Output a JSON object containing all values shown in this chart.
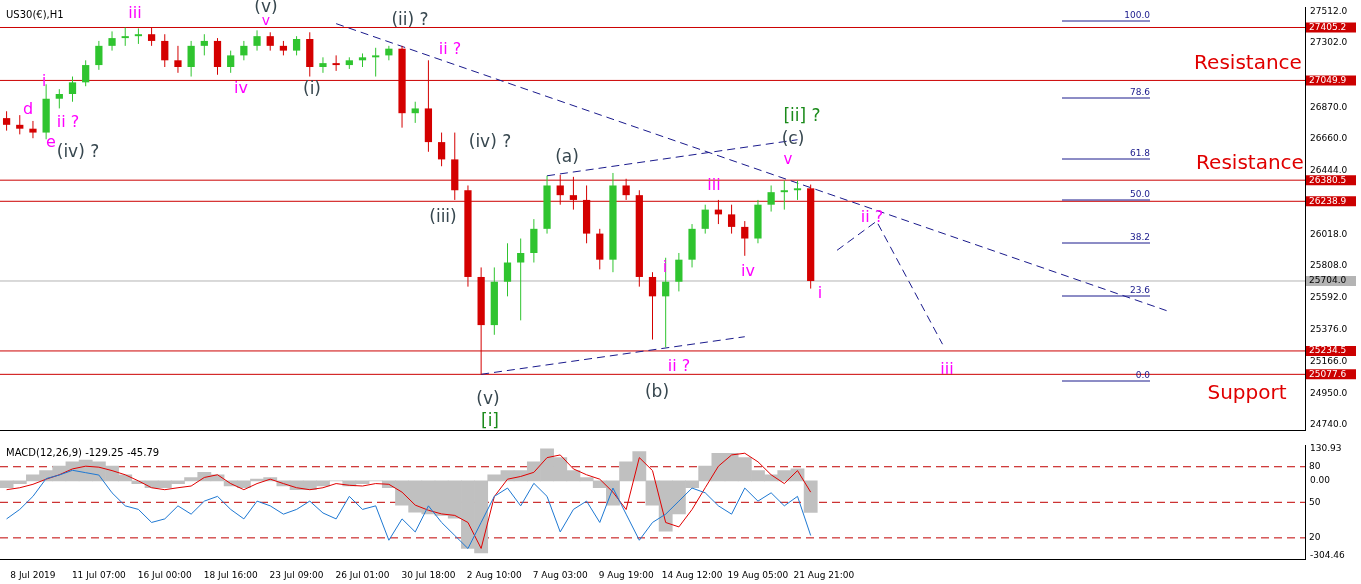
{
  "chart_data": [
    {
      "type": "candlestick",
      "title": "US30(€),H1",
      "tick_labels": "y",
      "categories": [
        null,
        null,
        null,
        null,
        null,
        null,
        null,
        null,
        null,
        null,
        null,
        null,
        null,
        null,
        null,
        null,
        null,
        null,
        null,
        null,
        null,
        null,
        null,
        null,
        null,
        null,
        null,
        null,
        null,
        null,
        null,
        null,
        null,
        null,
        null,
        null,
        null,
        null,
        null,
        null,
        null,
        null,
        null,
        null,
        null,
        null,
        null,
        null,
        null,
        null,
        null,
        null,
        null,
        null,
        null,
        null,
        null,
        null,
        null,
        null,
        null,
        null,
        null,
        null,
        null,
        null,
        null,
        null,
        null,
        null,
        null,
        null,
        null,
        null,
        null,
        null,
        null,
        null,
        null,
        null,
        null,
        null,
        null,
        null,
        null,
        null,
        null,
        null,
        null,
        null,
        null,
        null,
        null,
        null,
        null,
        null,
        null,
        null,
        null
      ],
      "ohlc": [
        [
          26797,
          26843,
          26713,
          26752
        ],
        [
          26752,
          26817,
          26688,
          26726
        ],
        [
          26726,
          26778,
          26662,
          26700
        ],
        [
          26700,
          27024,
          26655,
          26927
        ],
        [
          26927,
          26991,
          26862,
          26959
        ],
        [
          26959,
          27076,
          26907,
          27037
        ],
        [
          27037,
          27185,
          27011,
          27153
        ],
        [
          27153,
          27315,
          27121,
          27282
        ],
        [
          27282,
          27379,
          27250,
          27334
        ],
        [
          27334,
          27405,
          27282,
          27347
        ],
        [
          27347,
          27399,
          27295,
          27360
        ],
        [
          27360,
          27405,
          27282,
          27315
        ],
        [
          27315,
          27360,
          27140,
          27185
        ],
        [
          27185,
          27282,
          27101,
          27140
        ],
        [
          27140,
          27315,
          27076,
          27282
        ],
        [
          27282,
          27360,
          27218,
          27315
        ],
        [
          27315,
          27334,
          27088,
          27140
        ],
        [
          27140,
          27250,
          27101,
          27218
        ],
        [
          27218,
          27315,
          27185,
          27282
        ],
        [
          27282,
          27386,
          27250,
          27347
        ],
        [
          27347,
          27373,
          27250,
          27282
        ],
        [
          27282,
          27315,
          27218,
          27250
        ],
        [
          27250,
          27347,
          27218,
          27328
        ],
        [
          27328,
          27373,
          27076,
          27140
        ],
        [
          27140,
          27205,
          27101,
          27166
        ],
        [
          27166,
          27218,
          27114,
          27153
        ],
        [
          27153,
          27205,
          27127,
          27185
        ],
        [
          27185,
          27231,
          27140,
          27205
        ],
        [
          27205,
          27269,
          27076,
          27218
        ],
        [
          27218,
          27282,
          27185,
          27263
        ],
        [
          27263,
          27282,
          26733,
          26830
        ],
        [
          26830,
          26907,
          26765,
          26862
        ],
        [
          26862,
          27185,
          26571,
          26636
        ],
        [
          26636,
          26700,
          26474,
          26520
        ],
        [
          26520,
          26700,
          26248,
          26313
        ],
        [
          26313,
          26345,
          25666,
          25731
        ],
        [
          25731,
          25795,
          25078,
          25408
        ],
        [
          25408,
          25795,
          25343,
          25699
        ],
        [
          25699,
          25957,
          25601,
          25828
        ],
        [
          25828,
          25989,
          25440,
          25892
        ],
        [
          25892,
          26119,
          25828,
          26054
        ],
        [
          26054,
          26410,
          26022,
          26345
        ],
        [
          26345,
          26416,
          26216,
          26280
        ],
        [
          26280,
          26403,
          26183,
          26248
        ],
        [
          26248,
          26345,
          25957,
          26022
        ],
        [
          26022,
          26054,
          25782,
          25847
        ],
        [
          25847,
          26429,
          25763,
          26345
        ],
        [
          26345,
          26390,
          26248,
          26280
        ],
        [
          26280,
          26313,
          25666,
          25731
        ],
        [
          25731,
          25763,
          25311,
          25601
        ],
        [
          25601,
          25860,
          25259,
          25699
        ],
        [
          25699,
          25892,
          25634,
          25847
        ],
        [
          25847,
          26086,
          25795,
          26054
        ],
        [
          26054,
          26216,
          26022,
          26183
        ],
        [
          26183,
          26248,
          26086,
          26151
        ],
        [
          26151,
          26216,
          26022,
          26067
        ],
        [
          26067,
          26106,
          25873,
          25989
        ],
        [
          25989,
          26248,
          25957,
          26216
        ],
        [
          26216,
          26345,
          26170,
          26300
        ],
        [
          26300,
          26377,
          26183,
          26313
        ],
        [
          26313,
          26377,
          26248,
          26326
        ],
        [
          26326,
          26351,
          25653,
          25704
        ],
        null,
        null,
        null,
        null,
        null,
        null,
        null,
        null,
        null,
        null,
        null,
        null,
        null,
        null,
        null,
        null,
        null,
        null,
        null,
        null,
        null,
        null,
        null,
        null,
        null,
        null,
        null,
        null,
        null,
        null,
        null,
        null,
        null,
        null,
        null,
        null,
        null
      ],
      "colors": [
        "#d40000",
        "#d40000",
        "#d40000",
        "#2fc42f",
        "#2fc42f",
        "#2fc42f",
        "#2fc42f",
        "#2fc42f",
        "#2fc42f",
        "#2fc42f",
        "#2fc42f",
        "#d40000",
        "#d40000",
        "#d40000",
        "#2fc42f",
        "#2fc42f",
        "#d40000",
        "#2fc42f",
        "#2fc42f",
        "#2fc42f",
        "#d40000",
        "#d40000",
        "#2fc42f",
        "#d40000",
        "#2fc42f",
        "#d40000",
        "#2fc42f",
        "#2fc42f",
        "#2fc42f",
        "#2fc42f",
        "#d40000",
        "#2fc42f",
        "#d40000",
        "#d40000",
        "#d40000",
        "#d40000",
        "#d40000",
        "#2fc42f",
        "#2fc42f",
        "#2fc42f",
        "#2fc42f",
        "#2fc42f",
        "#d40000",
        "#d40000",
        "#d40000",
        "#d40000",
        "#2fc42f",
        "#d40000",
        "#d40000",
        "#d40000",
        "#2fc42f",
        "#2fc42f",
        "#2fc42f",
        "#2fc42f",
        "#d40000",
        "#d40000",
        "#d40000",
        "#2fc42f",
        "#2fc42f",
        "#2fc42f",
        "#2fc42f",
        "#d40000",
        null,
        null,
        null,
        null,
        null,
        null,
        null,
        null,
        null,
        null,
        null,
        null,
        null,
        null,
        null,
        null,
        null,
        null,
        null,
        null,
        null,
        null,
        null,
        null,
        null,
        null,
        null,
        null,
        null,
        null,
        null,
        null,
        null,
        null,
        null,
        null,
        null
      ],
      "series": [
        {
          "type": "line",
          "color": "#1a1a8c",
          "line_style": "dashed",
          "values": [
            null,
            null,
            null,
            null,
            null,
            null,
            null,
            null,
            null,
            null,
            null,
            null,
            null,
            null,
            null,
            null,
            null,
            null,
            null,
            null,
            null,
            null,
            null,
            null,
            null,
            27431,
            null,
            null,
            null,
            null,
            null,
            null,
            null,
            null,
            null,
            null,
            null,
            null,
            null,
            null,
            null,
            null,
            null,
            null,
            null,
            null,
            null,
            null,
            null,
            null,
            null,
            null,
            null,
            null,
            null,
            null,
            null,
            null,
            null,
            null,
            null,
            null,
            null,
            null,
            null,
            null,
            null,
            null,
            null,
            null,
            null,
            null,
            null,
            null,
            null,
            null,
            null,
            null,
            null,
            null,
            null,
            null,
            null,
            null,
            null,
            null,
            null,
            null,
            25505,
            null,
            null,
            null,
            null,
            null,
            null,
            null,
            null,
            null,
            null
          ]
        },
        {
          "type": "line",
          "color": "#1a1a8c",
          "line_style": "dashed",
          "values": [
            null,
            null,
            null,
            null,
            null,
            null,
            null,
            null,
            null,
            null,
            null,
            null,
            null,
            null,
            null,
            null,
            null,
            null,
            null,
            null,
            null,
            null,
            null,
            null,
            null,
            null,
            null,
            null,
            null,
            null,
            null,
            null,
            null,
            null,
            null,
            null,
            null,
            null,
            null,
            null,
            null,
            26410,
            null,
            null,
            null,
            null,
            null,
            null,
            null,
            null,
            null,
            null,
            null,
            null,
            null,
            null,
            null,
            null,
            null,
            null,
            26652,
            null,
            null,
            null,
            null,
            null,
            null,
            null,
            null,
            null,
            null,
            null,
            null,
            null,
            null,
            null,
            null,
            null,
            null,
            null,
            null,
            null,
            null,
            null,
            null,
            null,
            null,
            null,
            null,
            null,
            null,
            null,
            null,
            null,
            null,
            null,
            null,
            null,
            null
          ]
        },
        {
          "type": "line",
          "color": "#1a1a8c",
          "line_style": "dashed",
          "values": [
            null,
            null,
            null,
            null,
            null,
            null,
            null,
            null,
            null,
            null,
            null,
            null,
            null,
            null,
            null,
            null,
            null,
            null,
            null,
            null,
            null,
            null,
            null,
            null,
            null,
            null,
            null,
            null,
            null,
            null,
            null,
            null,
            null,
            null,
            null,
            null,
            25078,
            null,
            null,
            null,
            null,
            null,
            null,
            null,
            null,
            null,
            null,
            null,
            null,
            null,
            null,
            null,
            null,
            null,
            null,
            null,
            25330,
            null,
            null,
            null,
            null,
            null,
            null,
            null,
            null,
            null,
            null,
            null,
            null,
            null,
            null,
            null,
            null,
            null,
            null,
            null,
            null,
            null,
            null,
            null,
            null,
            null,
            null,
            null,
            null,
            null,
            null,
            null,
            null,
            null,
            null,
            null,
            null,
            null,
            null,
            null,
            null,
            null,
            null
          ]
        },
        {
          "type": "line",
          "color": "#1a1a8c",
          "line_style": "dashed",
          "values": [
            null,
            null,
            null,
            null,
            null,
            null,
            null,
            null,
            null,
            null,
            null,
            null,
            null,
            null,
            null,
            null,
            null,
            null,
            null,
            null,
            null,
            null,
            null,
            null,
            null,
            null,
            null,
            null,
            null,
            null,
            null,
            null,
            null,
            null,
            null,
            null,
            null,
            null,
            null,
            null,
            null,
            null,
            null,
            null,
            null,
            null,
            null,
            null,
            null,
            null,
            null,
            null,
            null,
            null,
            null,
            null,
            null,
            null,
            null,
            null,
            null,
            null,
            null,
            25910,
            null,
            null,
            26105,
            null,
            null,
            null,
            null,
            25280,
            null,
            null,
            null,
            null,
            null,
            null,
            null,
            null,
            null,
            null,
            null,
            null,
            null,
            null,
            null,
            null,
            null,
            null,
            null,
            null,
            null,
            null,
            null,
            null,
            null,
            null,
            null
          ]
        }
      ],
      "ylim": [
        24700,
        27540
      ],
      "yticks": [
        {
          "value": 27512,
          "label": "27512.0"
        },
        {
          "value": 27302,
          "label": "27302.0"
        },
        {
          "value": 26870,
          "label": "26870.0"
        },
        {
          "value": 26660,
          "label": "26660.0"
        },
        {
          "value": 26444,
          "label": "26444.0"
        },
        {
          "value": 26018,
          "label": "26018.0"
        },
        {
          "value": 25808,
          "label": "25808.0"
        },
        {
          "value": 25592,
          "label": "25592.0"
        },
        {
          "value": 25376,
          "label": "25376.0"
        },
        {
          "value": 25166,
          "label": "25166.0"
        },
        {
          "value": 24950,
          "label": "24950.0"
        },
        {
          "value": 24740,
          "label": "24740.0"
        }
      ],
      "ref_lines": [
        {
          "axis": "y",
          "value": 27405.2,
          "label": "27405.2",
          "color": "#cc0000"
        },
        {
          "axis": "y",
          "value": 27049.9,
          "label": "27049.9",
          "color": "#cc0000"
        },
        {
          "axis": "y",
          "value": 26380.5,
          "label": "26380.5",
          "color": "#cc0000"
        },
        {
          "axis": "y",
          "value": 26238.9,
          "label": "26238.9",
          "color": "#cc0000"
        },
        {
          "axis": "y",
          "value": 25704.0,
          "label": "25704.0",
          "color": "#b4b4b4"
        },
        {
          "axis": "y",
          "value": 25234.5,
          "label": "25234.5",
          "color": "#cc0000"
        },
        {
          "axis": "y",
          "value": 25077.6,
          "label": "25077.6",
          "color": "#cc0000"
        }
      ],
      "annotations": [
        "iii",
        "(v)",
        "v",
        "(ii) ?",
        "ii ?",
        "i",
        "d",
        "ii ?",
        "e",
        "(iv) ?",
        "iv",
        "(i)",
        "(iv) ?",
        "(iii)",
        "(a)",
        "(v)",
        "[i]",
        "i",
        "ii ?",
        "(b)",
        "iii",
        "iv",
        "[ii] ?",
        "(c)",
        "v",
        "i",
        "ii ?",
        "iii",
        "Resistance",
        "Resistance",
        "Support",
        "100.0",
        "78.6",
        "61.8",
        "50.0",
        "38.2",
        "23.6",
        "0.0"
      ]
    },
    {
      "type": "line",
      "title": "MACD(12,26,9) -129.25 -45.79",
      "categories": [
        null,
        null,
        "8 Jul 2019",
        null,
        null,
        null,
        null,
        "11 Jul 07:00",
        null,
        null,
        null,
        null,
        "16 Jul 00:00",
        null,
        null,
        null,
        null,
        "18 Jul 16:00",
        null,
        null,
        null,
        null,
        "23 Jul 09:00",
        null,
        null,
        null,
        null,
        "26 Jul 01:00",
        null,
        null,
        null,
        null,
        "30 Jul 18:00",
        null,
        null,
        null,
        null,
        "2 Aug 10:00",
        null,
        null,
        null,
        null,
        "7 Aug 03:00",
        null,
        null,
        null,
        null,
        "9 Aug 19:00",
        null,
        null,
        null,
        null,
        "14 Aug 12:00",
        null,
        null,
        null,
        null,
        "19 Aug 05:00",
        null,
        null,
        null,
        null,
        "21 Aug 21:00",
        null,
        null,
        null,
        null,
        null,
        null,
        null,
        null,
        null,
        null,
        null,
        null,
        null,
        null,
        null,
        null,
        null,
        null,
        null,
        null,
        null,
        null,
        null,
        null,
        null,
        null,
        null,
        null,
        null,
        null,
        null,
        null,
        null,
        null,
        null,
        null
      ],
      "series": [
        {
          "type": "bar",
          "color": "#c0c0c0",
          "values": [
            -28,
            -11,
            25,
            42,
            60,
            78,
            85,
            78,
            60,
            25,
            -11,
            -28,
            -28,
            -11,
            14,
            35,
            25,
            -21,
            -28,
            7,
            14,
            -21,
            -36,
            -36,
            -21,
            0,
            -21,
            -11,
            0,
            -28,
            -99,
            -128,
            -135,
            -141,
            -152,
            -276,
            -294,
            25,
            42,
            42,
            78,
            131,
            95,
            42,
            14,
            -28,
            -99,
            78,
            120,
            -99,
            -205,
            -135,
            -28,
            60,
            113,
            113,
            95,
            42,
            25,
            42,
            49,
            -129,
            null,
            null,
            null,
            null,
            null,
            null,
            null,
            null,
            null,
            null,
            null,
            null,
            null,
            null,
            null,
            null,
            null,
            null,
            null,
            null,
            null,
            null,
            null,
            null,
            null,
            null,
            null,
            null,
            null,
            null,
            null,
            null,
            null,
            null,
            null,
            null,
            null
          ]
        },
        {
          "type": "line",
          "color": "#1e78d2",
          "axis": "y2",
          "values": [
            36,
            44,
            55,
            70,
            73,
            77,
            75,
            73,
            58,
            47,
            44,
            33,
            36,
            47,
            40,
            51,
            55,
            44,
            36,
            51,
            47,
            40,
            44,
            51,
            41,
            36,
            55,
            44,
            47,
            18,
            36,
            25,
            47,
            33,
            22,
            11,
            33,
            55,
            62,
            47,
            66,
            55,
            25,
            44,
            51,
            33,
            62,
            40,
            18,
            33,
            40,
            51,
            62,
            58,
            47,
            40,
            62,
            51,
            58,
            47,
            55,
            22,
            null,
            null,
            null,
            null,
            null,
            null,
            null,
            null,
            null,
            null,
            null,
            null,
            null,
            null,
            null,
            null,
            null,
            null,
            null,
            null,
            null,
            null,
            null,
            null,
            null,
            null,
            null,
            null,
            null,
            null,
            null,
            null,
            null,
            null,
            null,
            null,
            null
          ]
        },
        {
          "type": "line",
          "color": "#e00000",
          "values": [
            -36,
            -28,
            -14,
            7,
            25,
            49,
            60,
            56,
            42,
            25,
            0,
            -28,
            -36,
            -28,
            -21,
            14,
            25,
            -11,
            -36,
            -11,
            7,
            -11,
            -28,
            -36,
            -28,
            -11,
            -18,
            -21,
            -11,
            -14,
            -46,
            -99,
            -120,
            -135,
            -141,
            -170,
            -276,
            -64,
            7,
            18,
            35,
            95,
            106,
            49,
            25,
            7,
            -46,
            -117,
            95,
            42,
            -170,
            -188,
            -117,
            -28,
            60,
            106,
            113,
            78,
            25,
            -11,
            42,
            -46,
            null,
            null,
            null,
            null,
            null,
            null,
            null,
            null,
            null,
            null,
            null,
            null,
            null,
            null,
            null,
            null,
            null,
            null,
            null,
            null,
            null,
            null,
            null,
            null,
            null,
            null,
            null,
            null,
            null,
            null,
            null,
            null,
            null,
            null,
            null,
            null,
            null
          ]
        }
      ],
      "ylim": [
        -320,
        145
      ],
      "yticks": [
        130.93,
        {
          "value": 0,
          "label": "0.00"
        },
        -304.46
      ],
      "y2lim": [
        2,
        98
      ],
      "ref_lines": [
        {
          "axis": "y2",
          "value": 80,
          "label": "80",
          "color": "#c00000",
          "line_style": "dashed"
        },
        {
          "axis": "y2",
          "value": 50,
          "label": "50",
          "color": "#c00000",
          "line_style": "dashed"
        },
        {
          "axis": "y2",
          "value": 20,
          "label": "20",
          "color": "#c00000",
          "line_style": "dashed"
        }
      ]
    }
  ]
}
